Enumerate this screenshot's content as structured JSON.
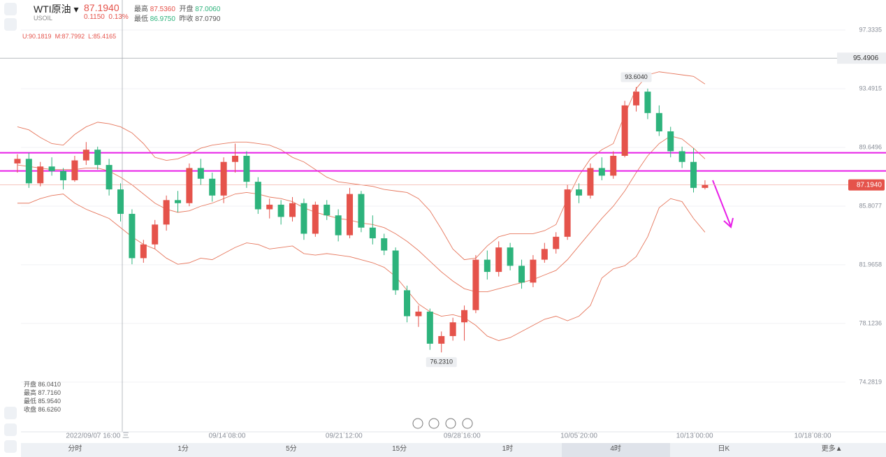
{
  "header": {
    "symbol": "WTI原油",
    "code": "USOIL",
    "price": "87.1940",
    "change": "0.1150",
    "change_pct": "0.13%",
    "stats": [
      {
        "label": "最高",
        "value": "87.5360"
      },
      {
        "label": "开盘",
        "value": "87.0060"
      },
      {
        "label": "最低",
        "value": "86.9750"
      },
      {
        "label": "昨收",
        "value": "87.0790"
      }
    ],
    "bands_legend": [
      "U:90.1819",
      "M:87.7992",
      "L:85.4165"
    ]
  },
  "ohlc_box": [
    {
      "label": "开盘",
      "value": "86.0410"
    },
    {
      "label": "最高",
      "value": "87.7160"
    },
    {
      "label": "最低",
      "value": "85.9540"
    },
    {
      "label": "收盘",
      "value": "86.6260"
    }
  ],
  "tabs": [
    "分时",
    "1分",
    "5分",
    "15分",
    "1时",
    "4时",
    "日K",
    "更多▲"
  ],
  "selected_tab": "4时",
  "chart_data": {
    "type": "candlestick",
    "up_color": "#e5534b",
    "down_color": "#2db37c",
    "x": [
      0,
      1,
      2,
      3,
      4,
      5,
      6,
      7,
      8,
      9,
      10,
      11,
      12,
      13,
      14,
      15,
      16,
      17,
      18,
      19,
      20,
      21,
      22,
      23,
      24,
      25,
      26,
      27,
      28,
      29,
      30,
      31,
      32,
      33,
      34,
      35,
      36,
      37,
      38,
      39,
      40,
      41,
      42,
      43,
      44,
      45,
      46,
      47,
      48,
      49,
      50,
      51,
      52,
      53,
      54,
      55,
      56,
      57,
      58,
      59,
      60
    ],
    "open": [
      88.6,
      88.9,
      87.3,
      88.4,
      88.1,
      87.5,
      88.8,
      89.5,
      88.5,
      86.9,
      85.3,
      82.4,
      83.3,
      84.6,
      86.2,
      86.0,
      88.3,
      87.6,
      86.5,
      88.7,
      89.1,
      87.4,
      85.6,
      85.9,
      85.1,
      86.0,
      84.0,
      85.9,
      85.2,
      83.9,
      86.6,
      84.4,
      83.7,
      82.9,
      80.3,
      78.6,
      78.9,
      76.8,
      77.3,
      78.2,
      79.0,
      82.3,
      81.5,
      83.1,
      81.9,
      80.8,
      82.3,
      83.0,
      83.8,
      86.9,
      86.5,
      88.3,
      87.8,
      89.1,
      92.4,
      93.3,
      91.9,
      90.7,
      89.4,
      88.7,
      87.0
    ],
    "high": [
      89.2,
      89.3,
      88.7,
      89.0,
      88.3,
      89.1,
      90.0,
      89.7,
      88.9,
      87.3,
      85.6,
      83.6,
      84.9,
      86.5,
      86.8,
      88.6,
      88.9,
      88.0,
      89.0,
      89.9,
      89.4,
      87.7,
      86.3,
      86.2,
      86.4,
      86.3,
      86.1,
      86.2,
      85.6,
      87.0,
      86.8,
      85.2,
      84.0,
      83.1,
      80.6,
      79.3,
      79.1,
      77.6,
      78.5,
      79.3,
      82.6,
      82.9,
      83.5,
      83.4,
      82.3,
      82.6,
      83.4,
      84.1,
      87.2,
      87.3,
      88.6,
      89.0,
      89.4,
      92.7,
      93.604,
      93.5,
      92.4,
      91.0,
      89.7,
      89.6,
      87.5
    ],
    "low": [
      88.0,
      87.0,
      87.1,
      87.8,
      86.9,
      87.4,
      88.5,
      88.2,
      86.5,
      84.8,
      82.0,
      82.1,
      83.0,
      84.2,
      85.4,
      85.8,
      87.2,
      86.1,
      86.0,
      88.0,
      87.0,
      85.3,
      85.0,
      84.6,
      84.8,
      83.6,
      83.8,
      84.9,
      83.5,
      83.7,
      84.1,
      83.3,
      82.6,
      80.0,
      78.2,
      77.9,
      76.4,
      76.231,
      77.0,
      77.0,
      78.8,
      81.0,
      81.2,
      81.6,
      80.4,
      80.5,
      82.1,
      82.7,
      83.6,
      86.0,
      86.3,
      87.5,
      87.6,
      89.0,
      92.0,
      91.5,
      90.4,
      89.0,
      88.3,
      86.7,
      86.9
    ],
    "close": [
      88.9,
      87.3,
      88.4,
      88.1,
      87.5,
      88.8,
      89.5,
      88.5,
      86.9,
      85.3,
      82.4,
      83.3,
      84.6,
      86.2,
      86.0,
      88.3,
      87.6,
      86.5,
      88.7,
      89.1,
      87.4,
      85.6,
      85.9,
      85.1,
      86.0,
      84.0,
      85.9,
      85.2,
      83.9,
      86.6,
      84.4,
      83.7,
      82.9,
      80.3,
      78.6,
      78.9,
      76.8,
      77.3,
      78.2,
      79.0,
      82.3,
      81.5,
      83.1,
      81.9,
      80.8,
      82.3,
      83.0,
      83.8,
      86.9,
      86.5,
      88.3,
      87.8,
      89.1,
      92.4,
      93.3,
      91.9,
      90.7,
      89.4,
      88.7,
      87.0,
      87.194
    ],
    "series": [
      {
        "name": "U",
        "color": "#e6775d",
        "values": [
          91.0,
          90.8,
          90.3,
          89.9,
          89.8,
          90.5,
          91.0,
          91.3,
          91.2,
          91.0,
          90.6,
          89.9,
          89.0,
          88.8,
          88.9,
          89.2,
          89.6,
          89.8,
          89.9,
          90.0,
          90.0,
          89.9,
          89.8,
          89.5,
          89.0,
          88.7,
          88.2,
          87.7,
          87.4,
          87.3,
          87.2,
          87.1,
          86.9,
          86.8,
          86.7,
          86.3,
          85.5,
          84.3,
          83.0,
          82.3,
          82.4,
          83.2,
          83.8,
          84.0,
          84.0,
          84.0,
          84.2,
          84.6,
          86.3,
          87.8,
          88.9,
          89.5,
          89.9,
          91.8,
          93.5,
          94.4,
          94.6,
          94.5,
          94.4,
          94.3,
          93.8
        ]
      },
      {
        "name": "M",
        "color": "#e6775d",
        "values": [
          88.5,
          88.4,
          88.3,
          88.2,
          88.2,
          88.2,
          88.3,
          88.3,
          88.1,
          87.7,
          87.2,
          86.6,
          86.0,
          85.6,
          85.4,
          85.5,
          85.8,
          86.0,
          86.3,
          86.6,
          86.7,
          86.6,
          86.4,
          86.3,
          86.1,
          85.7,
          85.4,
          85.2,
          85.0,
          84.9,
          84.7,
          84.6,
          84.4,
          84.0,
          83.5,
          82.9,
          82.2,
          81.5,
          80.9,
          80.4,
          80.2,
          80.2,
          80.4,
          80.6,
          80.8,
          81.0,
          81.3,
          81.6,
          82.3,
          83.2,
          84.1,
          85.0,
          85.8,
          86.8,
          88.0,
          89.1,
          89.9,
          90.4,
          90.2,
          89.6,
          88.9
        ]
      },
      {
        "name": "L",
        "color": "#e6775d",
        "values": [
          86.0,
          86.0,
          86.3,
          86.5,
          86.6,
          86.0,
          85.6,
          85.3,
          85.0,
          84.4,
          83.8,
          83.3,
          83.0,
          82.4,
          82.0,
          82.1,
          82.4,
          82.3,
          82.7,
          83.1,
          83.4,
          83.3,
          83.0,
          83.1,
          83.2,
          82.7,
          82.6,
          82.7,
          82.6,
          82.5,
          82.3,
          82.1,
          81.8,
          81.2,
          80.3,
          79.4,
          78.9,
          78.6,
          78.7,
          78.5,
          78.0,
          77.3,
          77.0,
          77.2,
          77.6,
          78.0,
          78.4,
          78.6,
          78.3,
          78.6,
          79.3,
          81.1,
          81.7,
          81.9,
          82.5,
          83.8,
          85.7,
          86.3,
          86.1,
          85.0,
          84.1
        ]
      }
    ],
    "xlim": [
      -1.52,
      72.26
    ],
    "xticks": [
      {
        "value": 7,
        "label": "2022/09/07 16:00 三"
      },
      {
        "value": 18.3,
        "label": "09/14 08:00"
      },
      {
        "value": 28.5,
        "label": "09/21 12:00"
      },
      {
        "value": 38.8,
        "label": "09/28 16:00"
      },
      {
        "value": 49,
        "label": "10/05 20:00"
      },
      {
        "value": 59.1,
        "label": "10/13 00:00"
      },
      {
        "value": 69.4,
        "label": "10/18 08:00"
      }
    ],
    "ylim": [
      71.03,
      99.3
    ],
    "yticks": [
      74.2819,
      78.1236,
      81.9658,
      85.8077,
      89.6496,
      93.4915,
      97.3335
    ],
    "hlines": [
      {
        "value": 89.3,
        "color": "#e81ee8"
      },
      {
        "value": 88.11,
        "color": "#e81ee8"
      }
    ],
    "alert_line": {
      "value": 95.4906,
      "label": "95.4906"
    },
    "price_line": {
      "value": 87.194,
      "label": "87.1940"
    },
    "annotations": [
      {
        "value": 93.604,
        "label": "93.6040"
      },
      {
        "value": 76.231,
        "label": "76.2310"
      }
    ]
  }
}
